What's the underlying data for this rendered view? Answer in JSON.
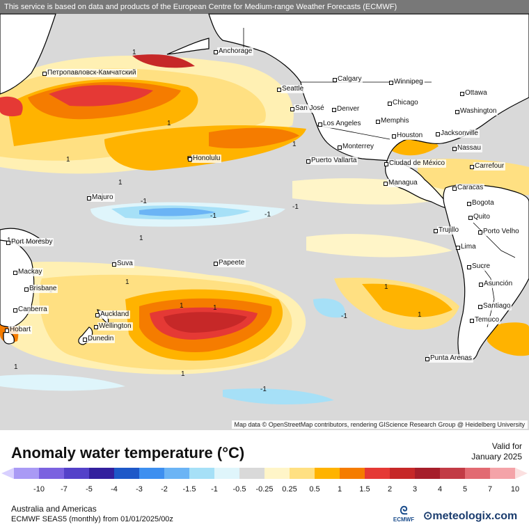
{
  "banner": "This service is based on data and products of the European Centre for Medium-range Weather Forecasts (ECMWF)",
  "attribution": "Map data © OpenStreetMap contributors, rendering GIScience Research Group @ Heidelberg University",
  "title": "Anomaly water temperature (°C)",
  "valid_label": "Valid for",
  "valid_date": "January 2025",
  "region": "Australia and Americas",
  "product": "ECMWF SEAS5 (monthly) from 01/01/2025/00z",
  "ecmwf_label": "ECMWF",
  "brand": "meteologix.com",
  "colors": {
    "land": "#ffffff",
    "neutral_sea": "#d9d9d9",
    "coast": "#000000"
  },
  "legend": {
    "ticks": [
      "-10",
      "-7",
      "-5",
      "-4",
      "-3",
      "-2",
      "-1.5",
      "-1",
      "-0.5",
      "-0.25",
      "0.25",
      "0.5",
      "1",
      "1.5",
      "2",
      "3",
      "4",
      "5",
      "7",
      "10"
    ],
    "colors": [
      "#a99af5",
      "#7b62e0",
      "#5441c9",
      "#33209e",
      "#1e58c8",
      "#3d8ff0",
      "#6bb4f5",
      "#a6e0f7",
      "#dff5fb",
      "#d9d9d9",
      "#fff5c8",
      "#ffe082",
      "#ffb300",
      "#f57c00",
      "#e53935",
      "#c62828",
      "#a61e2a",
      "#c23b45",
      "#e26a72",
      "#f4a3a8"
    ]
  },
  "cities": [
    {
      "name": "Anchorage",
      "icon": "square-marker"
    },
    {
      "name": "Петропавловск-Камчатский",
      "icon": "square-marker"
    },
    {
      "name": "Calgary",
      "icon": "square-marker"
    },
    {
      "name": "Winnipeg",
      "icon": "square-marker"
    },
    {
      "name": "Ottawa",
      "icon": "square-marker"
    },
    {
      "name": "Seattle",
      "icon": "square-marker"
    },
    {
      "name": "Chicago",
      "icon": "square-marker"
    },
    {
      "name": "Washington",
      "icon": "square-marker"
    },
    {
      "name": "San José",
      "icon": "square-marker"
    },
    {
      "name": "Denver",
      "icon": "square-marker"
    },
    {
      "name": "Memphis",
      "icon": "square-marker"
    },
    {
      "name": "Los Angeles",
      "icon": "square-marker"
    },
    {
      "name": "Houston",
      "icon": "square-marker"
    },
    {
      "name": "Jacksonville",
      "icon": "square-marker"
    },
    {
      "name": "Monterrey",
      "icon": "square-marker"
    },
    {
      "name": "Nassau",
      "icon": "square-marker"
    },
    {
      "name": "Honolulu",
      "icon": "square-marker"
    },
    {
      "name": "Puerto Vallarta",
      "icon": "square-marker"
    },
    {
      "name": "Ciudad de México",
      "icon": "square-marker"
    },
    {
      "name": "Carrefour",
      "icon": "square-marker"
    },
    {
      "name": "Managua",
      "icon": "square-marker"
    },
    {
      "name": "Caracas",
      "icon": "square-marker"
    },
    {
      "name": "Majuro",
      "icon": "square-marker"
    },
    {
      "name": "Bogota",
      "icon": "square-marker"
    },
    {
      "name": "Quito",
      "icon": "square-marker"
    },
    {
      "name": "Trujillo",
      "icon": "square-marker"
    },
    {
      "name": "Porto Velho",
      "icon": "square-marker"
    },
    {
      "name": "Port Moresby",
      "icon": "square-marker"
    },
    {
      "name": "Lima",
      "icon": "square-marker"
    },
    {
      "name": "Suva",
      "icon": "square-marker"
    },
    {
      "name": "Papeete",
      "icon": "square-marker"
    },
    {
      "name": "Sucre",
      "icon": "square-marker"
    },
    {
      "name": "Mackay",
      "icon": "square-marker"
    },
    {
      "name": "Brisbane",
      "icon": "square-marker"
    },
    {
      "name": "Asunción",
      "icon": "square-marker"
    },
    {
      "name": "Canberra",
      "icon": "square-marker"
    },
    {
      "name": "Auckland",
      "icon": "square-marker"
    },
    {
      "name": "Santiago",
      "icon": "square-marker"
    },
    {
      "name": "Wellington",
      "icon": "square-marker"
    },
    {
      "name": "Temuco",
      "icon": "square-marker"
    },
    {
      "name": "Hobart",
      "icon": "square-marker"
    },
    {
      "name": "Dunedin",
      "icon": "square-marker"
    },
    {
      "name": "Punta Arenas",
      "icon": "square-marker"
    }
  ],
  "contour_labels": [
    "1",
    "1",
    "1",
    "1",
    "1",
    "1",
    "1",
    "1",
    "-1",
    "-1",
    "-1",
    "-1",
    "-1",
    "1",
    "1",
    "1",
    "1",
    "1",
    "-1",
    "1",
    "1"
  ]
}
